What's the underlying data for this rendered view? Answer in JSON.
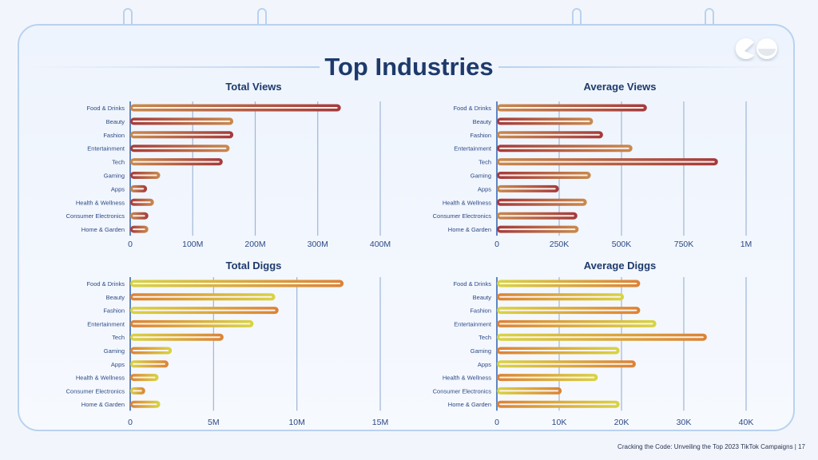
{
  "page": {
    "title": "Top Industries",
    "footer": "Cracking the Code: Unveiling the Top 2023 TikTok Campaigns | 17",
    "logo_icon": "eyes-logo-icon"
  },
  "colors": {
    "title": "#1d3a6b",
    "views_a": "#c98a4e",
    "views_b": "#a53a3c",
    "diggs_a": "#d8d444",
    "diggs_b": "#dc8236",
    "gridline": "#9fb6d6",
    "label": "#2c4a86"
  },
  "chart_data": [
    {
      "type": "bar",
      "orientation": "horizontal",
      "title": "Total Views",
      "categories": [
        "Food & Drinks",
        "Beauty",
        "Fashion",
        "Entertainment",
        "Tech",
        "Gaming",
        "Apps",
        "Health & Wellness",
        "Consumer Electronics",
        "Home & Garden"
      ],
      "values": [
        337000000,
        165000000,
        165000000,
        159000000,
        148000000,
        48000000,
        27000000,
        38000000,
        29000000,
        29000000
      ],
      "xlim": [
        0,
        400000000
      ],
      "ticks": [
        0,
        100000000,
        200000000,
        300000000,
        400000000
      ],
      "tick_labels": [
        "0",
        "100M",
        "200M",
        "300M",
        "400M"
      ],
      "grid": true,
      "palette": "views"
    },
    {
      "type": "bar",
      "orientation": "horizontal",
      "title": "Average Views",
      "categories": [
        "Food & Drinks",
        "Beauty",
        "Fashion",
        "Entertainment",
        "Tech",
        "Gaming",
        "Apps",
        "Health & Wellness",
        "Consumer Electronics",
        "Home & Garden"
      ],
      "values": [
        602000,
        386000,
        426000,
        544000,
        887000,
        377000,
        249000,
        361000,
        323000,
        328000
      ],
      "xlim": [
        0,
        1000000
      ],
      "ticks": [
        0,
        250000,
        500000,
        750000,
        1000000
      ],
      "tick_labels": [
        "0",
        "250K",
        "500K",
        "750K",
        "1M"
      ],
      "grid": true,
      "palette": "views"
    },
    {
      "type": "bar",
      "orientation": "horizontal",
      "title": "Total Diggs",
      "categories": [
        "Food & Drinks",
        "Beauty",
        "Fashion",
        "Entertainment",
        "Tech",
        "Gaming",
        "Apps",
        "Health & Wellness",
        "Consumer Electronics",
        "Home & Garden"
      ],
      "values": [
        12800000,
        8700000,
        8900000,
        7400000,
        5600000,
        2500000,
        2300000,
        1700000,
        900000,
        1800000
      ],
      "xlim": [
        0,
        15000000
      ],
      "ticks": [
        0,
        5000000,
        10000000,
        15000000
      ],
      "tick_labels": [
        "0",
        "5M",
        "10M",
        "15M"
      ],
      "grid": true,
      "palette": "diggs"
    },
    {
      "type": "bar",
      "orientation": "horizontal",
      "title": "Average Diggs",
      "categories": [
        "Food & Drinks",
        "Beauty",
        "Fashion",
        "Entertainment",
        "Tech",
        "Gaming",
        "Apps",
        "Health & Wellness",
        "Consumer Electronics",
        "Home & Garden"
      ],
      "values": [
        23000,
        20400,
        23000,
        25600,
        33700,
        19700,
        22300,
        16200,
        10400,
        19700
      ],
      "xlim": [
        0,
        40000
      ],
      "ticks": [
        0,
        10000,
        20000,
        30000,
        40000
      ],
      "tick_labels": [
        "0",
        "10K",
        "20K",
        "30K",
        "40K"
      ],
      "grid": true,
      "palette": "diggs"
    }
  ]
}
